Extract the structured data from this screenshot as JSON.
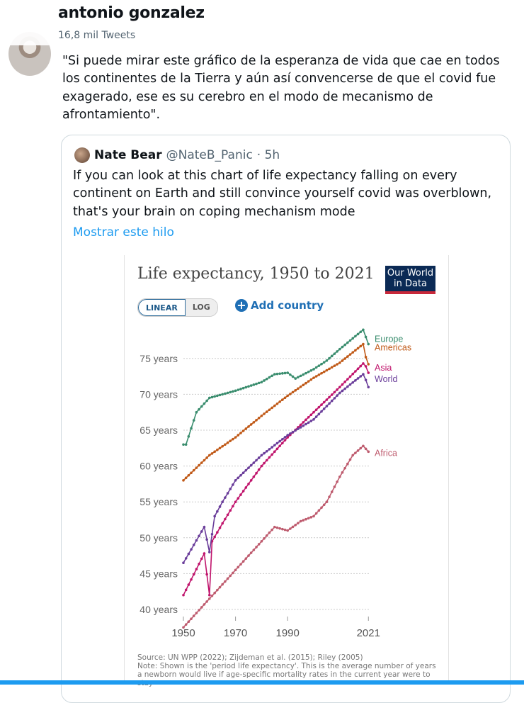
{
  "header": {
    "name": "antonio gonzalez",
    "tweet_count": "16,8 mil Tweets"
  },
  "tweet": {
    "text": "\"Si puede mirar este gráfico de la esperanza de vida que cae en todos los continentes de la Tierra y aún así convencerse de que el covid fue exagerado, ese es su cerebro en el modo de mecanismo de afrontamiento\"."
  },
  "quote": {
    "name": "Nate Bear",
    "handle": "@NateB_Panic",
    "time": "· 5h",
    "text": "If you can look at this chart of life expectancy falling on every continent on Earth and still convince yourself covid was overblown, that's your brain on coping mechanism mode",
    "show_thread": "Mostrar este hilo"
  },
  "chart_ui": {
    "logo": "Our World in Data",
    "linear": "LINEAR",
    "log": "LOG",
    "add_country": "Add country",
    "source": "Source: UN WPP (2022); Zijdeman et al. (2015); Riley (2005)",
    "note": "Note: Shown is the 'period life expectancy'. This is the average number of years a newborn would live if age-specific mortality rates in the current year were to stay"
  },
  "chart_data": {
    "type": "line",
    "title": "Life expectancy, 1950 to 2021",
    "xlim": [
      1950,
      2021
    ],
    "ylim": [
      40,
      80
    ],
    "x_ticks": [
      1950,
      1970,
      1990,
      2021
    ],
    "y_ticks": [
      {
        "v": 40,
        "label": "40 years"
      },
      {
        "v": 45,
        "label": "45 years"
      },
      {
        "v": 50,
        "label": "50 years"
      },
      {
        "v": 55,
        "label": "55 years"
      },
      {
        "v": 60,
        "label": "60 years"
      },
      {
        "v": 65,
        "label": "65 years"
      },
      {
        "v": 70,
        "label": "70 years"
      },
      {
        "v": 75,
        "label": "75 years"
      }
    ],
    "series": [
      {
        "name": "Europe",
        "color": "#3a8d6e",
        "points": [
          [
            1950,
            63
          ],
          [
            1951,
            63
          ],
          [
            1955,
            67.5
          ],
          [
            1960,
            69.5
          ],
          [
            1965,
            70
          ],
          [
            1970,
            70.5
          ],
          [
            1980,
            71.7
          ],
          [
            1985,
            72.8
          ],
          [
            1990,
            73
          ],
          [
            1993,
            72.2
          ],
          [
            2000,
            73.5
          ],
          [
            2005,
            74.7
          ],
          [
            2010,
            76.3
          ],
          [
            2015,
            77.8
          ],
          [
            2019,
            79
          ],
          [
            2020,
            78
          ],
          [
            2021,
            77
          ]
        ]
      },
      {
        "name": "Americas",
        "color": "#c05917",
        "points": [
          [
            1950,
            58
          ],
          [
            1960,
            61.5
          ],
          [
            1970,
            64
          ],
          [
            1980,
            67
          ],
          [
            1990,
            69.8
          ],
          [
            2000,
            72.3
          ],
          [
            2010,
            74.4
          ],
          [
            2019,
            77
          ],
          [
            2020,
            75.2
          ],
          [
            2021,
            74.2
          ]
        ]
      },
      {
        "name": "Asia",
        "color": "#c0146c",
        "points": [
          [
            1950,
            42
          ],
          [
            1958,
            47.8
          ],
          [
            1960,
            42
          ],
          [
            1961,
            49.5
          ],
          [
            1965,
            52
          ],
          [
            1970,
            55
          ],
          [
            1980,
            60
          ],
          [
            1990,
            64
          ],
          [
            2000,
            67.5
          ],
          [
            2010,
            71
          ],
          [
            2019,
            74.3
          ],
          [
            2020,
            73.9
          ],
          [
            2021,
            73
          ]
        ]
      },
      {
        "name": "World",
        "color": "#6a3d9a",
        "points": [
          [
            1950,
            46.5
          ],
          [
            1958,
            51.5
          ],
          [
            1960,
            48
          ],
          [
            1962,
            53
          ],
          [
            1965,
            55
          ],
          [
            1970,
            58
          ],
          [
            1980,
            61.5
          ],
          [
            1990,
            64.3
          ],
          [
            2000,
            66.5
          ],
          [
            2010,
            70.2
          ],
          [
            2019,
            72.8
          ],
          [
            2020,
            72
          ],
          [
            2021,
            71
          ]
        ]
      },
      {
        "name": "Africa",
        "color": "#be5b6e",
        "points": [
          [
            1950,
            37.5
          ],
          [
            1960,
            41.5
          ],
          [
            1970,
            45.5
          ],
          [
            1980,
            49.5
          ],
          [
            1985,
            51.5
          ],
          [
            1990,
            51
          ],
          [
            1995,
            52.3
          ],
          [
            2000,
            53
          ],
          [
            2005,
            55
          ],
          [
            2010,
            58.5
          ],
          [
            2015,
            61.5
          ],
          [
            2019,
            62.8
          ],
          [
            2021,
            62
          ]
        ]
      }
    ]
  }
}
